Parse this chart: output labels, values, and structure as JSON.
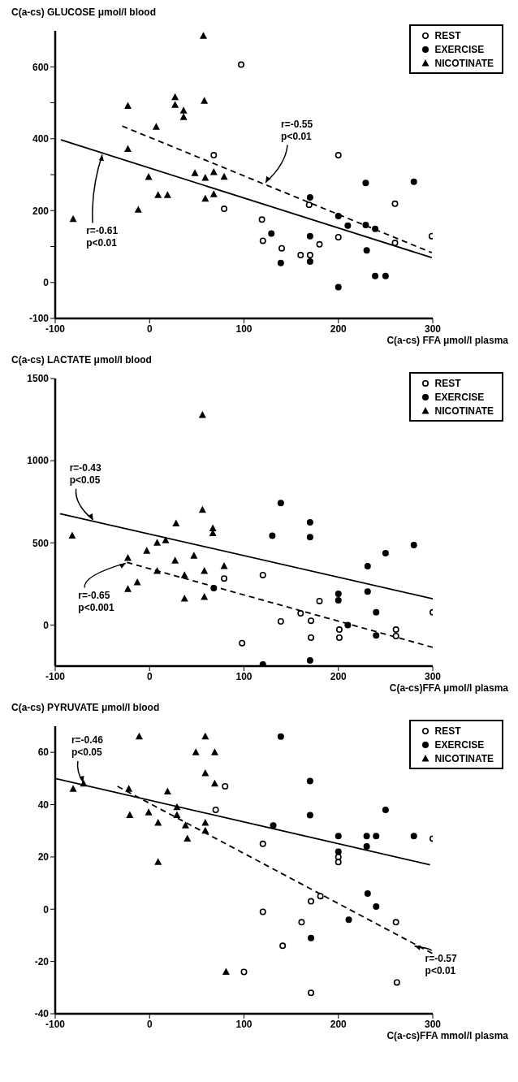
{
  "chart_data": [
    {
      "type": "scatter",
      "ylabel": "C(a-cs) GLUCOSE μmol/l blood",
      "xlabel": "C(a-cs) FFA μmol/l plasma",
      "xlim": [
        -100,
        300
      ],
      "ylim": [
        -100,
        700
      ],
      "xticks": [
        -100,
        0,
        100,
        200,
        300
      ],
      "yticks": [
        -100,
        0,
        {
          "value": 100,
          "label": null
        },
        200,
        {
          "value": 300,
          "label": null
        },
        400,
        {
          "value": 500,
          "label": null
        },
        600
      ],
      "legend": "top right",
      "grid": false,
      "annotations": [
        {
          "text": "r=-0.61\np<0.01",
          "x": -50,
          "y": 360
        },
        {
          "text": "r=-0.55\np<0.01",
          "x": 122,
          "y": 274
        }
      ],
      "series": [
        {
          "name": "REST",
          "type": "scatter",
          "marker": "circle-open",
          "color": "#000000",
          "x": [
            97,
            68,
            79,
            200,
            169,
            260,
            119,
            120,
            140,
            160,
            170,
            180,
            200,
            260,
            299
          ],
          "values": [
            606,
            354,
            205,
            354,
            216,
            219,
            175,
            116,
            95,
            76,
            76,
            106,
            126,
            110,
            129
          ]
        },
        {
          "name": "EXERCISE",
          "type": "scatter",
          "marker": "circle",
          "color": "#000000",
          "x": [
            229,
            280,
            170,
            200,
            210,
            229,
            239,
            129,
            170,
            139,
            170,
            230,
            239,
            250,
            200
          ],
          "values": [
            277,
            280,
            237,
            185,
            158,
            160,
            149,
            136,
            129,
            54,
            58,
            89,
            18,
            18,
            -13
          ]
        },
        {
          "name": "NICOTINATE",
          "type": "scatter",
          "marker": "triangle",
          "color": "#000000",
          "x": [
            57,
            -23,
            27,
            27,
            36,
            36,
            58,
            7,
            -23,
            -1,
            9,
            19,
            -12,
            -81,
            48,
            59,
            68,
            79,
            59,
            68
          ],
          "values": [
            686,
            491,
            515,
            494,
            478,
            460,
            505,
            433,
            371,
            293,
            243,
            243,
            202,
            176,
            304,
            291,
            307,
            294,
            233,
            245
          ]
        },
        {
          "type": "line",
          "line_style": "dashed",
          "marker": "none",
          "color": "#000000",
          "x": [
            -29,
            299
          ],
          "values": [
            435,
            83
          ]
        },
        {
          "type": "line",
          "line_style": "solid",
          "marker": "none",
          "color": "#000000",
          "x": [
            -94,
            299
          ],
          "values": [
            397,
            69
          ]
        }
      ]
    },
    {
      "type": "scatter",
      "ylabel": "C(a-cs) LACTATE μmol/l blood",
      "xlabel": "C(a-cs)FFA μmol/l plasma",
      "xlim": [
        -100,
        300
      ],
      "ylim": [
        -250,
        1500
      ],
      "xticks": [
        -100,
        0,
        100,
        200,
        300
      ],
      "yticks": [
        0,
        500,
        1000,
        1500
      ],
      "legend": "top right",
      "grid": false,
      "annotations": [
        {
          "text": "r=-0.43\np<0.05",
          "x": -59,
          "y": 631
        },
        {
          "text": "r=-0.65\np<0.001",
          "x": -24,
          "y": 381
        }
      ],
      "series": [
        {
          "name": "REST",
          "type": "scatter",
          "marker": "circle-open",
          "color": "#000000",
          "x": [
            79,
            98,
            120,
            180,
            160,
            139,
            171,
            171,
            201,
            201,
            261,
            261,
            300
          ],
          "values": [
            283,
            -110,
            304,
            146,
            71,
            22,
            26,
            -77,
            -28,
            -77,
            -28,
            -67,
            77
          ]
        },
        {
          "name": "EXERCISE",
          "type": "scatter",
          "marker": "circle",
          "color": "#000000",
          "x": [
            68,
            139,
            170,
            170,
            130,
            280,
            250,
            231,
            231,
            200,
            200,
            240,
            210,
            240,
            120,
            170
          ],
          "values": [
            224,
            742,
            625,
            535,
            543,
            486,
            437,
            358,
            203,
            190,
            150,
            77,
            0,
            -63,
            -240,
            -215
          ]
        },
        {
          "name": "NICOTINATE",
          "type": "scatter",
          "marker": "triangle",
          "color": "#000000",
          "x": [
            56,
            -82,
            56,
            28,
            67,
            67,
            17,
            8,
            -3,
            -23,
            27,
            47,
            79,
            58,
            8,
            37,
            -13,
            -23,
            37,
            58
          ],
          "values": [
            1278,
            543,
            701,
            618,
            588,
            558,
            515,
            500,
            451,
            407,
            391,
            421,
            358,
            328,
            328,
            302,
            259,
            219,
            160,
            170
          ]
        },
        {
          "type": "line",
          "line_style": "solid",
          "marker": "none",
          "color": "#000000",
          "x": [
            -95,
            300
          ],
          "values": [
            678,
            160
          ]
        },
        {
          "type": "line",
          "line_style": "dashed",
          "marker": "none",
          "color": "#000000",
          "x": [
            -24,
            300
          ],
          "values": [
            381,
            -136
          ]
        }
      ]
    },
    {
      "type": "scatter",
      "ylabel": "C(a-cs) PYRUVATE μmol/l blood",
      "xlabel": "C(a-cs)FFA mmol/l plasma",
      "xlim": [
        -100,
        300
      ],
      "ylim": [
        -40,
        70
      ],
      "xticks": [
        -100,
        0,
        100,
        200,
        300
      ],
      "yticks": [
        -40,
        -20,
        0,
        20,
        40,
        60
      ],
      "legend": "top right",
      "grid": false,
      "annotations": [
        {
          "text": "r=-0.46\np<0.05",
          "x": -70,
          "y": 48
        },
        {
          "text": "r=-0.57\np<0.01",
          "x": 279,
          "y": -14
        }
      ],
      "series": [
        {
          "name": "REST",
          "type": "scatter",
          "marker": "circle-open",
          "color": "#000000",
          "x": [
            80,
            70,
            100,
            120,
            300,
            200,
            200,
            181,
            171,
            120,
            161,
            261,
            141,
            262,
            171
          ],
          "values": [
            47,
            38,
            -24,
            25,
            27,
            20,
            18,
            5,
            3,
            -1,
            -5,
            -5,
            -14,
            -28,
            -32
          ]
        },
        {
          "name": "EXERCISE",
          "type": "scatter",
          "marker": "circle",
          "color": "#000000",
          "x": [
            139,
            170,
            170,
            250,
            131,
            200,
            230,
            240,
            280,
            230,
            200,
            231,
            240,
            211,
            171
          ],
          "values": [
            66,
            49,
            36,
            38,
            32,
            28,
            28,
            28,
            28,
            24,
            22,
            6,
            1,
            -4,
            -11
          ]
        },
        {
          "name": "NICOTINATE",
          "type": "scatter",
          "marker": "triangle",
          "color": "#000000",
          "x": [
            -11,
            59,
            49,
            69,
            59,
            69,
            -81,
            -70,
            -22,
            19,
            -21,
            -1,
            29,
            29,
            9,
            38,
            59,
            59,
            40,
            9,
            81
          ],
          "values": [
            66,
            66,
            60,
            60,
            52,
            48,
            46,
            48,
            46,
            45,
            36,
            37,
            39,
            36,
            33,
            32,
            33,
            30,
            27,
            18,
            -24
          ]
        },
        {
          "type": "line",
          "line_style": "solid",
          "marker": "none",
          "color": "#000000",
          "x": [
            -100,
            297
          ],
          "values": [
            50,
            17
          ]
        },
        {
          "type": "line",
          "line_style": "dashed",
          "marker": "none",
          "color": "#000000",
          "x": [
            -34,
            300
          ],
          "values": [
            47,
            -17
          ]
        }
      ]
    }
  ]
}
